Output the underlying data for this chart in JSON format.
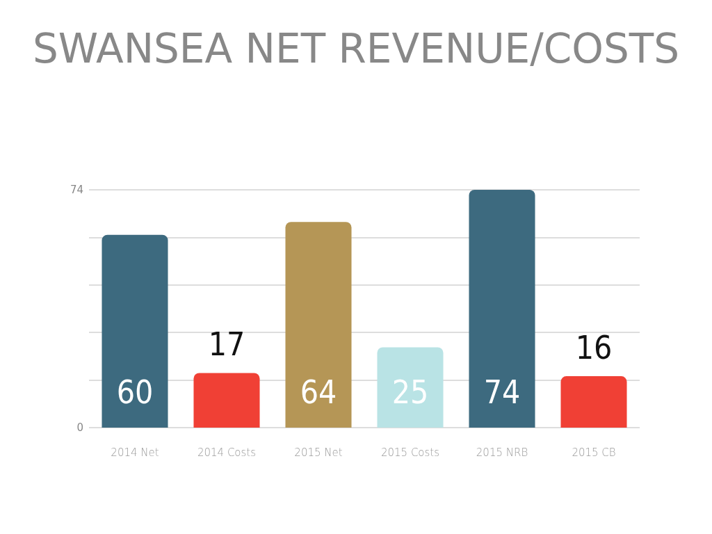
{
  "chart_data": {
    "type": "bar",
    "title": "SWANSEA NET REVENUE/COSTS",
    "categories": [
      "2014 Net",
      "2014 Costs",
      "2015 Net",
      "2015 Costs",
      "2015 NRB",
      "2015 CB"
    ],
    "values": [
      60,
      17,
      64,
      25,
      74,
      16
    ],
    "colors": [
      "#3d6a7f",
      "#f04035",
      "#b59656",
      "#b9e3e5",
      "#3d6a7f",
      "#f04035"
    ],
    "ylim": [
      0,
      74
    ],
    "yticks": [
      0,
      {
        "value": 14.8,
        "label": null
      },
      {
        "value": 29.6,
        "label": null
      },
      {
        "value": 44.4,
        "label": null
      },
      {
        "value": 59.2,
        "label": null
      },
      74
    ],
    "grid": "y",
    "data_labels": true
  }
}
